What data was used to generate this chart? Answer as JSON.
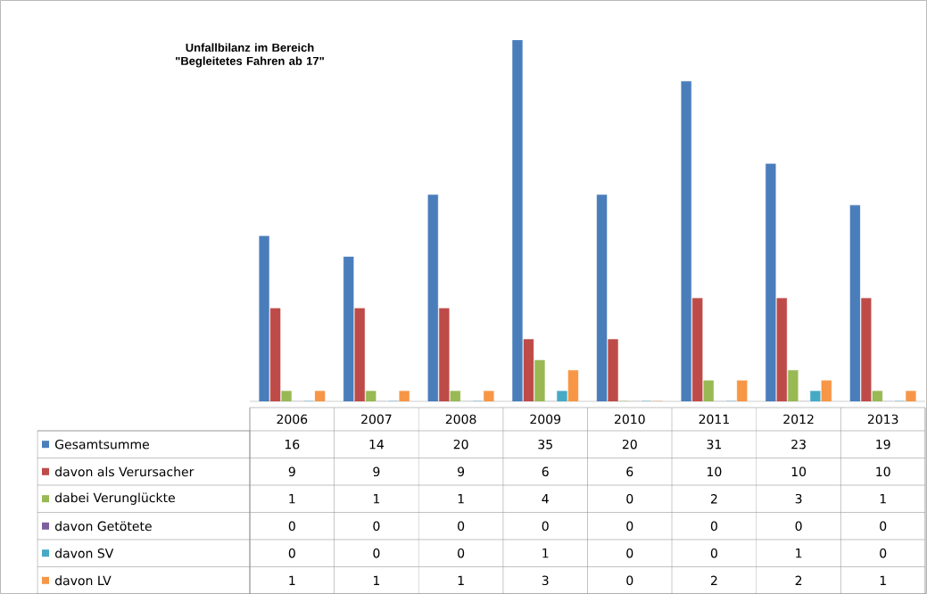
{
  "chart_data": {
    "type": "bar",
    "title": "Unfallbilanz im Bereich \"Begleitetes Fahren ab 17\"",
    "categories": [
      "2006",
      "2007",
      "2008",
      "2009",
      "2010",
      "2011",
      "2012",
      "2013"
    ],
    "data_labels": true,
    "legend": "bottom left",
    "series": [
      {
        "name": "Gesamtsumme",
        "color": "#4a7ebb",
        "values": [
          16,
          14,
          20,
          35,
          20,
          31,
          23,
          19
        ]
      },
      {
        "name": "davon als Verursacher",
        "color": "#be4b48",
        "values": [
          9,
          9,
          9,
          6,
          6,
          10,
          10,
          10
        ]
      },
      {
        "name": "dabei Verunglückte",
        "color": "#98b954",
        "values": [
          1,
          1,
          1,
          4,
          0,
          2,
          3,
          1
        ]
      },
      {
        "name": "davon Getötete",
        "color": "#7d60a0",
        "values": [
          0,
          0,
          0,
          0,
          0,
          0,
          0,
          0
        ]
      },
      {
        "name": "davon SV",
        "color": "#46aac5",
        "values": [
          0,
          0,
          0,
          1,
          0,
          0,
          1,
          0
        ]
      },
      {
        "name": "davon LV",
        "color": "#f79646",
        "values": [
          1,
          1,
          1,
          3,
          0,
          2,
          2,
          1
        ]
      }
    ]
  }
}
